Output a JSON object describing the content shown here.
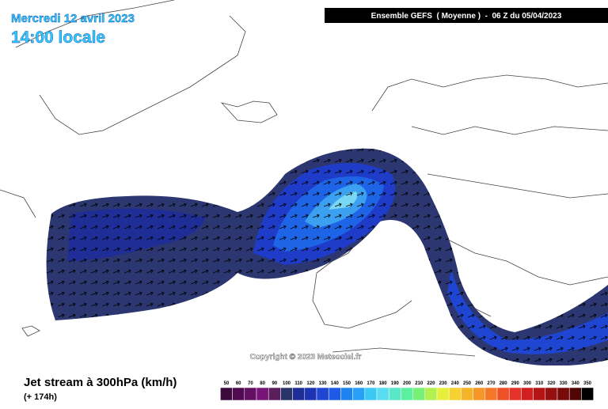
{
  "header": {
    "date": "Mercredi 12 avril 2023",
    "time": "14:00 locale",
    "model": "Ensemble GEFS  ( Moyenne )  -  06 Z du 05/04/2023"
  },
  "copyright": "Copyright © 2023 Meteociel.fr",
  "footer": {
    "title": "Jet stream à 300hPa (km/h)",
    "lead": "(+ 174h)"
  },
  "legend": {
    "labels": [
      50,
      60,
      70,
      80,
      90,
      100,
      110,
      120,
      130,
      140,
      150,
      160,
      170,
      180,
      190,
      200,
      210,
      220,
      230,
      240,
      250,
      260,
      270,
      280,
      290,
      300,
      310,
      320,
      330,
      340,
      350
    ],
    "colors": [
      "#3c0a3c",
      "#500a50",
      "#640f64",
      "#781478",
      "#5a1e5a",
      "#2a3468",
      "#1e2e96",
      "#1e32b4",
      "#1e46d2",
      "#1e5ae6",
      "#1e82f0",
      "#28a0f5",
      "#3cc8f5",
      "#5adcf0",
      "#5ae6c8",
      "#5af0a0",
      "#78f078",
      "#b4f050",
      "#e6f03c",
      "#f5d232",
      "#f5b428",
      "#f59628",
      "#f57828",
      "#f05028",
      "#e63228",
      "#d21e1e",
      "#b41414",
      "#961010",
      "#780a0a",
      "#500505",
      "#000000"
    ]
  }
}
